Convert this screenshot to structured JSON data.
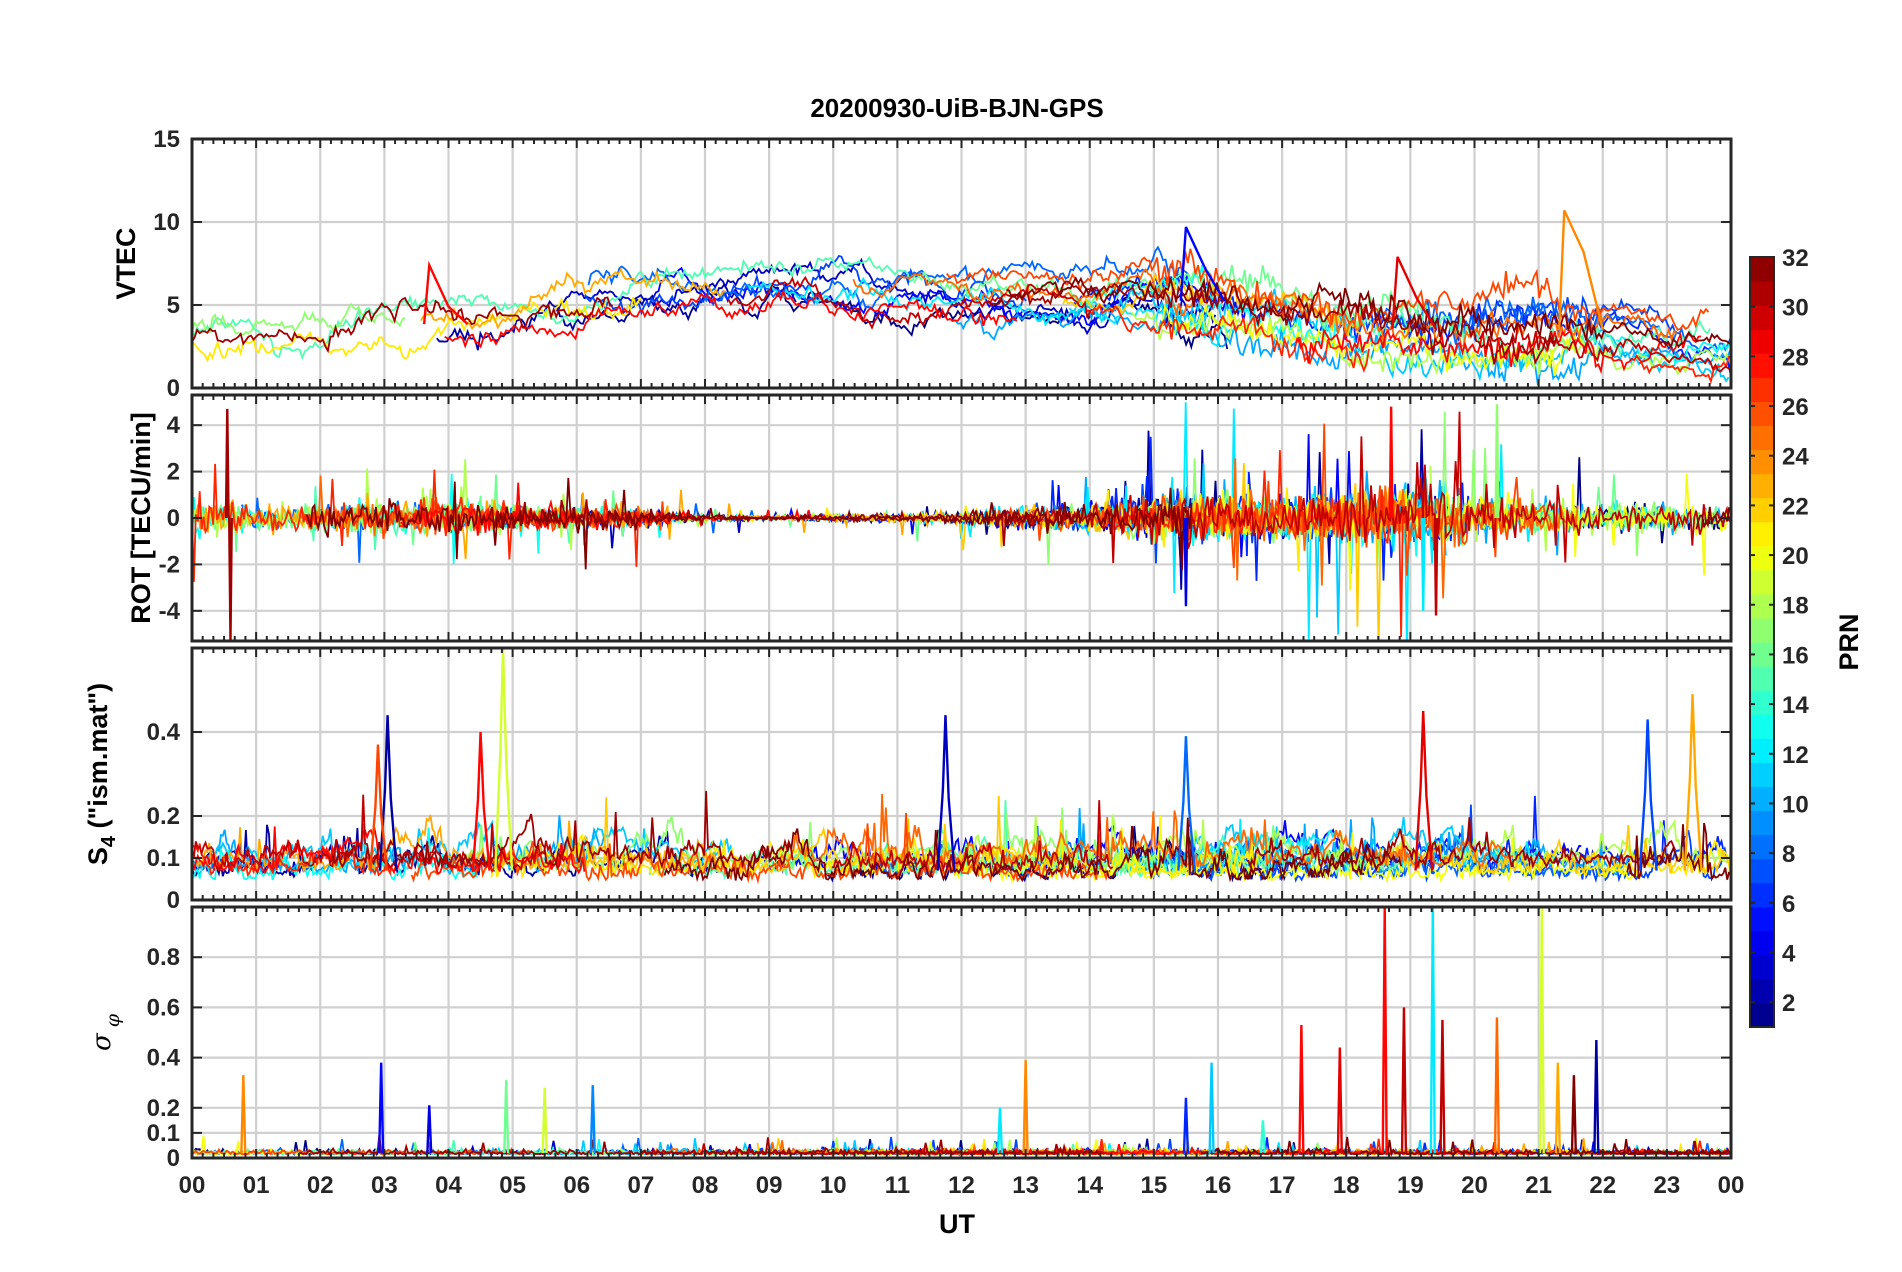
{
  "figure": {
    "title": "20200930-UiB-BJN-GPS",
    "xlabel": "UT"
  },
  "colorbar": {
    "label": "PRN",
    "ticks": [
      "2",
      "4",
      "6",
      "8",
      "10",
      "12",
      "14",
      "16",
      "18",
      "20",
      "22",
      "24",
      "26",
      "28",
      "30",
      "32"
    ],
    "range": [
      1,
      32
    ],
    "colormap": "jet"
  },
  "chart_data": [
    {
      "type": "line",
      "panel": "VTEC",
      "title": "20200930-UiB-BJN-GPS",
      "ylabel": "VTEC",
      "xlabel": "",
      "xlim": [
        0,
        24
      ],
      "ylim": [
        0,
        15
      ],
      "ytick_labels": [
        "0",
        "5",
        "10",
        "15"
      ],
      "series_color_by": "PRN",
      "x": [
        0,
        1,
        2,
        3,
        4,
        5,
        6,
        7,
        8,
        9,
        10,
        11,
        12,
        13,
        14,
        15,
        16,
        17,
        18,
        19,
        20,
        21,
        22,
        23,
        24
      ],
      "envelope": {
        "low": [
          2.0,
          2.2,
          2.3,
          2.5,
          2.3,
          3.0,
          3.5,
          4.3,
          5.0,
          5.3,
          5.3,
          4.5,
          4.2,
          4.3,
          4.5,
          4.0,
          3.5,
          3.0,
          2.5,
          2.5,
          2.5,
          2.5,
          2.3,
          1.5,
          1.8
        ],
        "mean": [
          2.8,
          3.0,
          3.0,
          3.5,
          4.0,
          4.5,
          5.0,
          5.5,
          5.8,
          6.0,
          6.0,
          5.5,
          5.5,
          5.3,
          5.2,
          5.5,
          5.0,
          4.2,
          3.8,
          3.5,
          3.5,
          3.5,
          3.5,
          2.8,
          2.5
        ],
        "high": [
          3.8,
          4.3,
          4.0,
          5.0,
          6.2,
          6.5,
          6.5,
          6.7,
          6.6,
          6.5,
          6.7,
          7.0,
          7.5,
          7.3,
          6.5,
          8.0,
          7.5,
          6.5,
          5.8,
          5.5,
          6.0,
          7.5,
          5.0,
          4.3,
          4.0
        ]
      },
      "peaks": [
        {
          "x": 21.4,
          "y": 10.7,
          "prn": 24
        },
        {
          "x": 15.5,
          "y": 9.7,
          "prn": 5
        },
        {
          "x": 18.8,
          "y": 7.9,
          "prn": 29
        },
        {
          "x": 3.7,
          "y": 7.4,
          "prn": 28
        }
      ]
    },
    {
      "type": "line",
      "panel": "ROT",
      "ylabel": "ROT [TECU/min]",
      "xlabel": "",
      "xlim": [
        0,
        24
      ],
      "ylim": [
        -5.3,
        5.3
      ],
      "ytick_labels": [
        "-4",
        "-2",
        "0",
        "2",
        "4"
      ],
      "series_color_by": "PRN",
      "x": [
        0,
        1,
        2,
        3,
        4,
        5,
        6,
        7,
        8,
        9,
        10,
        11,
        12,
        13,
        14,
        15,
        16,
        17,
        18,
        19,
        20,
        21,
        22,
        23,
        24
      ],
      "spread_abs": [
        1.8,
        1.2,
        1.2,
        1.5,
        1.5,
        1.2,
        1.0,
        0.8,
        0.3,
        0.2,
        0.3,
        0.3,
        0.6,
        1.0,
        1.2,
        2.0,
        2.0,
        2.0,
        2.2,
        2.8,
        2.5,
        1.5,
        1.3,
        1.2,
        1.0
      ],
      "peaks": [
        {
          "x": 0.55,
          "y": 4.7,
          "prn": 31
        },
        {
          "x": 0.6,
          "y": -5.3,
          "prn": 31
        },
        {
          "x": 18.7,
          "y": 4.8,
          "prn": 28
        },
        {
          "x": 19.4,
          "y": -4.2,
          "prn": 30
        },
        {
          "x": 20.35,
          "y": 4.9,
          "prn": 17
        },
        {
          "x": 19.2,
          "y": -4.0,
          "prn": 12
        },
        {
          "x": 15.5,
          "y": -3.8,
          "prn": 4
        }
      ]
    },
    {
      "type": "line",
      "panel": "S4",
      "ylabel": "S4 (\"ism.mat\")",
      "xlabel": "",
      "xlim": [
        0,
        24
      ],
      "ylim": [
        0,
        0.6
      ],
      "ytick_labels": [
        "0",
        "0.1",
        "0.2",
        "0.4"
      ],
      "series_color_by": "PRN",
      "x": [
        0,
        1,
        2,
        3,
        4,
        5,
        6,
        7,
        8,
        9,
        10,
        11,
        12,
        13,
        14,
        15,
        16,
        17,
        18,
        19,
        20,
        21,
        22,
        23,
        24
      ],
      "baseline": [
        0.05,
        0.05,
        0.05,
        0.05,
        0.05,
        0.05,
        0.05,
        0.05,
        0.05,
        0.05,
        0.05,
        0.05,
        0.05,
        0.05,
        0.05,
        0.05,
        0.05,
        0.05,
        0.05,
        0.05,
        0.05,
        0.05,
        0.05,
        0.05,
        0.05
      ],
      "typical": [
        0.15,
        0.1,
        0.1,
        0.15,
        0.12,
        0.15,
        0.13,
        0.13,
        0.12,
        0.12,
        0.12,
        0.14,
        0.14,
        0.12,
        0.1,
        0.12,
        0.11,
        0.11,
        0.11,
        0.12,
        0.12,
        0.1,
        0.1,
        0.13,
        0.15
      ],
      "peaks": [
        {
          "x": 4.85,
          "y": 0.6,
          "prn": 19
        },
        {
          "x": 3.05,
          "y": 0.44,
          "prn": 2
        },
        {
          "x": 11.75,
          "y": 0.44,
          "prn": 3
        },
        {
          "x": 19.2,
          "y": 0.45,
          "prn": 29
        },
        {
          "x": 23.4,
          "y": 0.49,
          "prn": 23
        },
        {
          "x": 22.7,
          "y": 0.43,
          "prn": 7
        },
        {
          "x": 4.5,
          "y": 0.4,
          "prn": 28
        },
        {
          "x": 2.9,
          "y": 0.37,
          "prn": 26
        },
        {
          "x": 15.5,
          "y": 0.39,
          "prn": 8
        }
      ]
    },
    {
      "type": "line",
      "panel": "sigma_phi",
      "ylabel": "σφ",
      "xlabel": "UT",
      "xlim": [
        0,
        24
      ],
      "ylim": [
        0,
        1.0
      ],
      "ytick_labels": [
        "0",
        "0.1",
        "0.2",
        "0.4",
        "0.6",
        "0.8"
      ],
      "xtick_labels": [
        "00",
        "01",
        "02",
        "03",
        "04",
        "05",
        "06",
        "07",
        "08",
        "09",
        "10",
        "11",
        "12",
        "13",
        "14",
        "15",
        "16",
        "17",
        "18",
        "19",
        "20",
        "21",
        "22",
        "23",
        "00"
      ],
      "series_color_by": "PRN",
      "baseline": 0.02,
      "peaks": [
        {
          "x": 0.8,
          "y": 0.33,
          "prn": 24
        },
        {
          "x": 2.95,
          "y": 0.38,
          "prn": 5
        },
        {
          "x": 3.7,
          "y": 0.21,
          "prn": 4
        },
        {
          "x": 4.9,
          "y": 0.31,
          "prn": 16
        },
        {
          "x": 5.5,
          "y": 0.28,
          "prn": 19
        },
        {
          "x": 6.25,
          "y": 0.29,
          "prn": 9
        },
        {
          "x": 12.6,
          "y": 0.2,
          "prn": 12
        },
        {
          "x": 13.0,
          "y": 0.39,
          "prn": 24
        },
        {
          "x": 15.5,
          "y": 0.24,
          "prn": 6
        },
        {
          "x": 15.9,
          "y": 0.38,
          "prn": 11
        },
        {
          "x": 16.7,
          "y": 0.15,
          "prn": 14
        },
        {
          "x": 17.3,
          "y": 0.53,
          "prn": 28
        },
        {
          "x": 17.9,
          "y": 0.44,
          "prn": 29
        },
        {
          "x": 18.6,
          "y": 1.0,
          "prn": 28
        },
        {
          "x": 18.9,
          "y": 0.6,
          "prn": 30
        },
        {
          "x": 19.35,
          "y": 1.0,
          "prn": 12
        },
        {
          "x": 19.5,
          "y": 0.55,
          "prn": 30
        },
        {
          "x": 20.35,
          "y": 0.56,
          "prn": 25
        },
        {
          "x": 21.05,
          "y": 1.0,
          "prn": 19
        },
        {
          "x": 21.3,
          "y": 0.38,
          "prn": 23
        },
        {
          "x": 21.55,
          "y": 0.33,
          "prn": 32
        },
        {
          "x": 21.9,
          "y": 0.47,
          "prn": 2
        }
      ]
    }
  ]
}
